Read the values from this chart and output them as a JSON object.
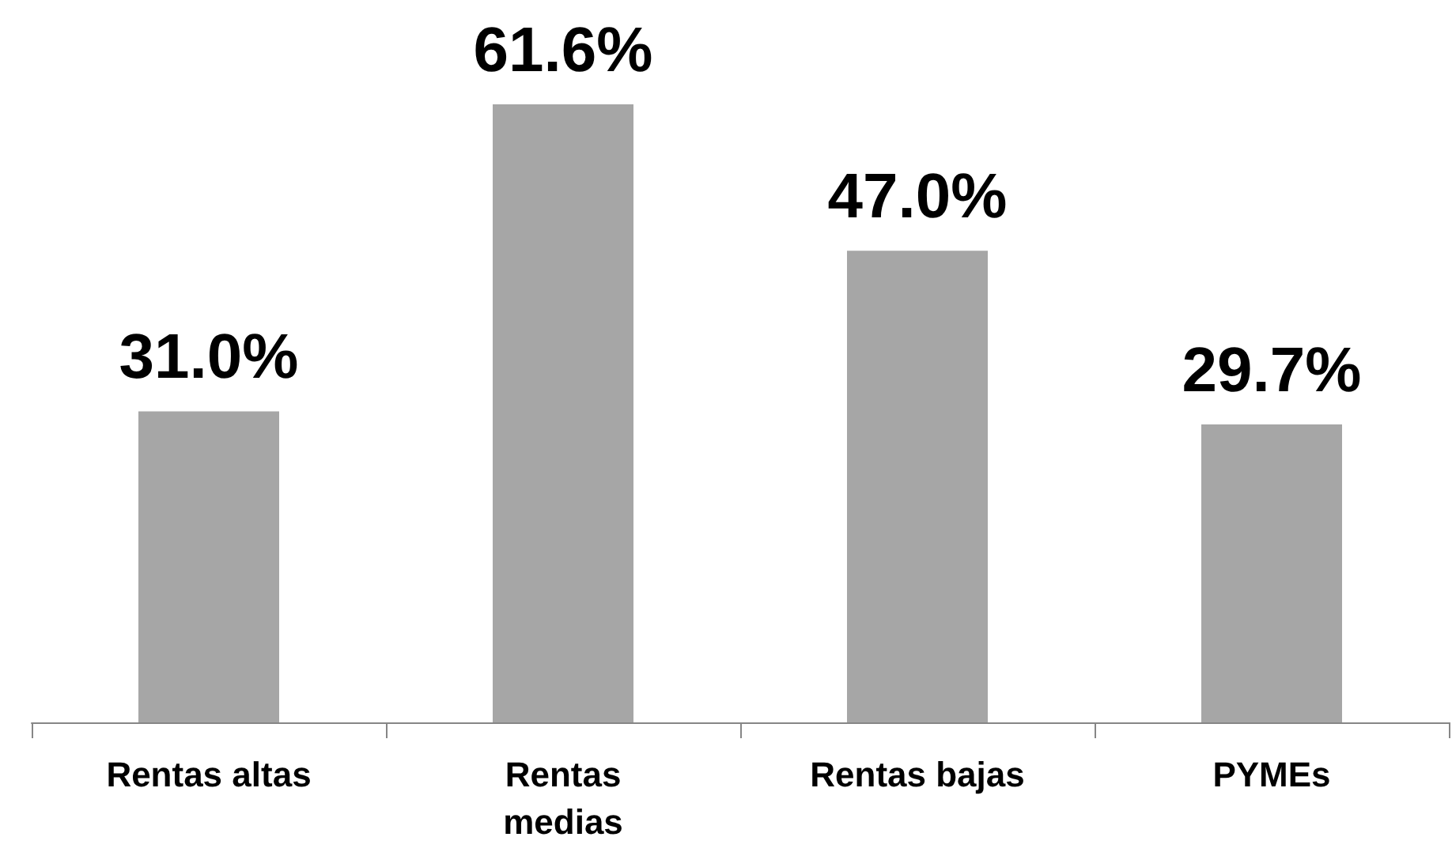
{
  "chart_data": {
    "type": "bar",
    "categories": [
      "Rentas altas",
      "Rentas\nmedias",
      "Rentas bajas",
      "PYMEs"
    ],
    "values": [
      31.0,
      61.6,
      47.0,
      29.7
    ],
    "color": "#a6a6a6",
    "value_labels": [
      "31.0%",
      "61.6%",
      "47.0%",
      "29.7%"
    ],
    "grid": false
  }
}
